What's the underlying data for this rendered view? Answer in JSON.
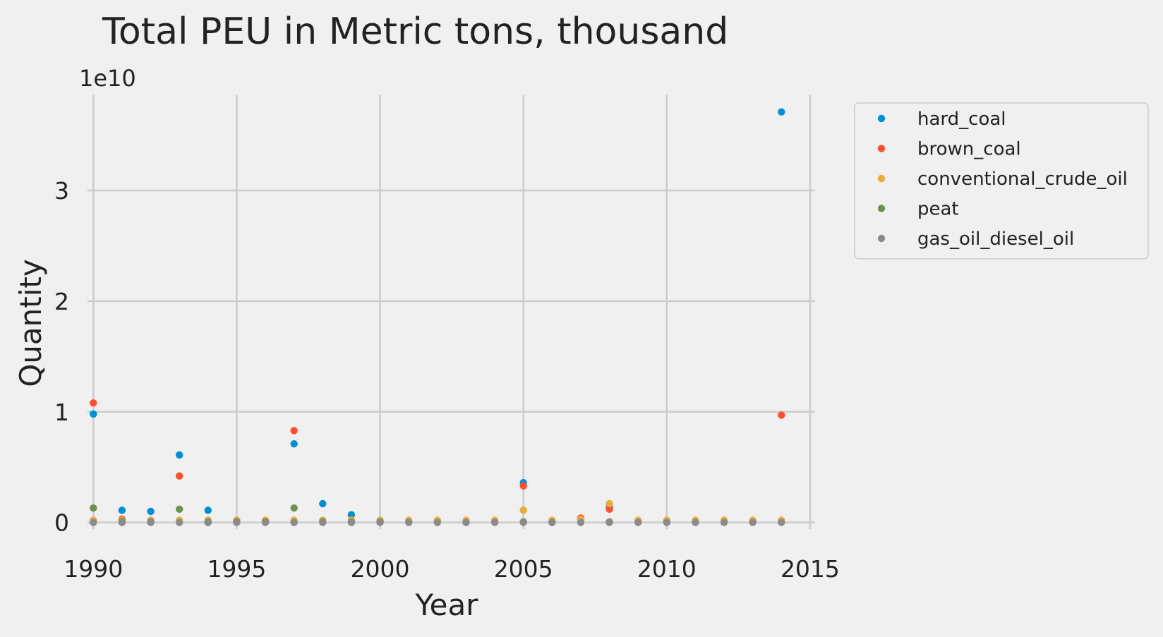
{
  "chart_data": {
    "type": "scatter",
    "title": "Total PEU in Metric tons,  thousand",
    "xlabel": "Year",
    "ylabel": "Quantity",
    "y_offset_label": "1e10",
    "y_scale": 10000000000,
    "xlim": [
      1989.5,
      2015.1
    ],
    "ylim": [
      -0.2,
      3.88
    ],
    "x_ticks": [
      1990,
      1995,
      2000,
      2005,
      2010,
      2015
    ],
    "y_ticks": [
      0,
      1,
      2,
      3
    ],
    "grid": true,
    "legend_position": "outside-right-top",
    "series": [
      {
        "name": "hard_coal",
        "color": "#008fd5",
        "points": [
          [
            1990,
            0.98
          ],
          [
            1991,
            0.11
          ],
          [
            1992,
            0.1
          ],
          [
            1993,
            0.61
          ],
          [
            1994,
            0.11
          ],
          [
            1995,
            0.01
          ],
          [
            1996,
            0.01
          ],
          [
            1997,
            0.71
          ],
          [
            1998,
            0.17
          ],
          [
            1999,
            0.07
          ],
          [
            2000,
            0.01
          ],
          [
            2001,
            0.01
          ],
          [
            2002,
            0.01
          ],
          [
            2003,
            0.01
          ],
          [
            2004,
            0.01
          ],
          [
            2005,
            0.36
          ],
          [
            2006,
            0.01
          ],
          [
            2007,
            0.03
          ],
          [
            2008,
            0.14
          ],
          [
            2009,
            0.01
          ],
          [
            2010,
            0.01
          ],
          [
            2011,
            0.01
          ],
          [
            2012,
            0.01
          ],
          [
            2013,
            0.01
          ],
          [
            2014,
            3.71
          ]
        ]
      },
      {
        "name": "brown_coal",
        "color": "#fc4f30",
        "points": [
          [
            1990,
            1.08
          ],
          [
            1991,
            0.03
          ],
          [
            1993,
            0.42
          ],
          [
            1995,
            0.02
          ],
          [
            1997,
            0.83
          ],
          [
            2005,
            0.33
          ],
          [
            2007,
            0.04
          ],
          [
            2008,
            0.12
          ],
          [
            2014,
            0.97
          ]
        ]
      },
      {
        "name": "conventional_crude_oil",
        "color": "#e5ae38",
        "points": [
          [
            1990,
            0.02
          ],
          [
            1991,
            0.02
          ],
          [
            1992,
            0.02
          ],
          [
            1993,
            0.02
          ],
          [
            1994,
            0.02
          ],
          [
            1995,
            0.02
          ],
          [
            1996,
            0.02
          ],
          [
            1997,
            0.02
          ],
          [
            1998,
            0.02
          ],
          [
            1999,
            0.02
          ],
          [
            2000,
            0.02
          ],
          [
            2001,
            0.02
          ],
          [
            2002,
            0.02
          ],
          [
            2003,
            0.02
          ],
          [
            2004,
            0.02
          ],
          [
            2005,
            0.11
          ],
          [
            2006,
            0.02
          ],
          [
            2007,
            0.03
          ],
          [
            2008,
            0.17
          ],
          [
            2009,
            0.02
          ],
          [
            2010,
            0.02
          ],
          [
            2011,
            0.02
          ],
          [
            2012,
            0.02
          ],
          [
            2013,
            0.02
          ],
          [
            2014,
            0.02
          ]
        ]
      },
      {
        "name": "peat",
        "color": "#6d904f",
        "points": [
          [
            1990,
            0.13
          ],
          [
            1991,
            0.01
          ],
          [
            1992,
            0.005
          ],
          [
            1993,
            0.12
          ],
          [
            1994,
            0.005
          ],
          [
            1995,
            0.005
          ],
          [
            1996,
            0.005
          ],
          [
            1997,
            0.13
          ],
          [
            1998,
            0.005
          ],
          [
            1999,
            0.005
          ],
          [
            2000,
            0.005
          ],
          [
            2005,
            0.005
          ],
          [
            2008,
            0.005
          ]
        ]
      },
      {
        "name": "gas_oil_diesel_oil",
        "color": "#8b8b8b",
        "points": [
          [
            1990,
            0
          ],
          [
            1991,
            0
          ],
          [
            1992,
            0
          ],
          [
            1993,
            0
          ],
          [
            1994,
            0
          ],
          [
            1995,
            0
          ],
          [
            1996,
            0
          ],
          [
            1997,
            0
          ],
          [
            1998,
            0
          ],
          [
            1999,
            0
          ],
          [
            2000,
            0
          ],
          [
            2001,
            0
          ],
          [
            2002,
            0
          ],
          [
            2003,
            0
          ],
          [
            2004,
            0
          ],
          [
            2005,
            0
          ],
          [
            2006,
            0
          ],
          [
            2007,
            0
          ],
          [
            2008,
            0
          ],
          [
            2009,
            0
          ],
          [
            2010,
            0
          ],
          [
            2011,
            0
          ],
          [
            2012,
            0
          ],
          [
            2013,
            0
          ],
          [
            2014,
            0
          ]
        ]
      }
    ]
  }
}
